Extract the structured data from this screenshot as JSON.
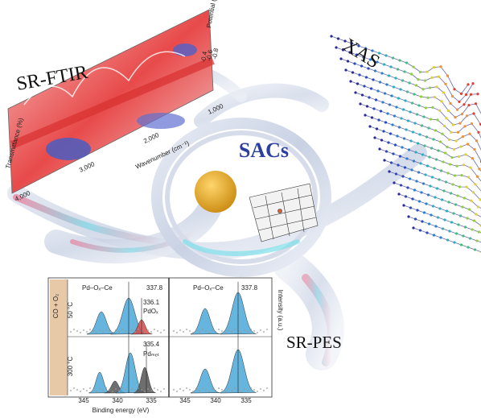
{
  "labels": {
    "ftir": "SR-FTIR",
    "xas": "XAS",
    "sacs": "SACs",
    "pes": "SR-PES"
  },
  "ftir_plot": {
    "x_axis": "Wavenumber (cm⁻¹)",
    "x_ticks": [
      "4,000",
      "3,000",
      "2,000",
      "1,000"
    ],
    "y_axis": "Transmittance (%)",
    "z_axis": "Potential (V)",
    "z_ticks": [
      "-0.4",
      "-0.6",
      "-0.8"
    ]
  },
  "pes_plot": {
    "condition": "CO + O₂",
    "rows": [
      "50 °C",
      "300 °C"
    ],
    "x_axis": "Binding energy (eV)",
    "y_axis": "Intensity (a.u.)",
    "panels": [
      {
        "x_ticks": [
          "345",
          "340",
          "335"
        ],
        "labels": [
          "Pd–Oₓ–Ce",
          "337.8",
          "336.1",
          "PdOₓ",
          "335.4",
          "Pdₘₑₜ"
        ]
      },
      {
        "x_ticks": [
          "345",
          "340",
          "335"
        ],
        "labels": [
          "Pd–Oₓ–Ce",
          "337.8"
        ]
      }
    ]
  }
}
